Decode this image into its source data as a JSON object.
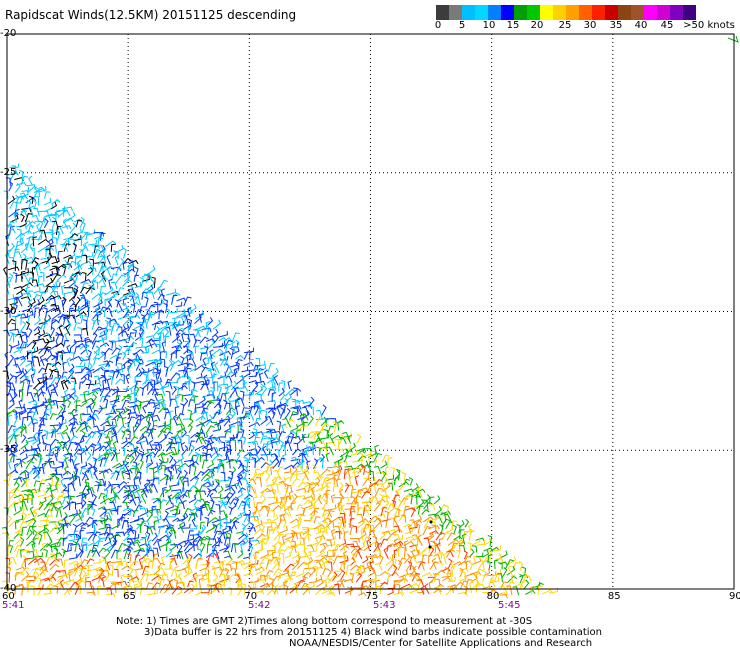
{
  "title": "Rapidscat Winds(12.5KM) 20151125 descending",
  "legend": {
    "colors": [
      "#3c3c3c",
      "#7a7a7a",
      "#00bfff",
      "#00d8ff",
      "#007fff",
      "#0000ff",
      "#00a000",
      "#00c800",
      "#ffff00",
      "#ffd000",
      "#ff9f00",
      "#ff6000",
      "#ff2000",
      "#c80000",
      "#8b4513",
      "#a0522d",
      "#ff00ff",
      "#d000d0",
      "#8000c0",
      "#400080"
    ],
    "ticks": [
      "0",
      "5",
      "10",
      "15",
      "20",
      "25",
      "30",
      "35",
      "40",
      "45",
      ">50 knots"
    ]
  },
  "axes": {
    "lon_labels": [
      "60",
      "65",
      "70",
      "75",
      "80",
      "85",
      "90"
    ],
    "lat_labels": [
      "-20",
      "-25",
      "-30",
      "-35",
      "-40"
    ]
  },
  "times": [
    "5:41",
    "5:42",
    "5:43",
    "5:45"
  ],
  "notes": [
    "Note: 1) Times are GMT 2)Times along bottom correspond to measurement at -30S",
    "3)Data buffer is 22 hrs from 20151125 4) Black wind barbs indicate possible contamination",
    "NOAA/NESDIS/Center for Satellite Applications and Research"
  ],
  "wind_speed_zones": [
    {
      "name": "calm-contamination",
      "color": "#000000"
    },
    {
      "name": "light-cyan",
      "color": "#00c8ff"
    },
    {
      "name": "blue",
      "color": "#0033ff"
    },
    {
      "name": "green",
      "color": "#00b000"
    },
    {
      "name": "yellow",
      "color": "#ffd700"
    },
    {
      "name": "orange",
      "color": "#ff9000"
    },
    {
      "name": "red-orange",
      "color": "#ff3000"
    }
  ]
}
